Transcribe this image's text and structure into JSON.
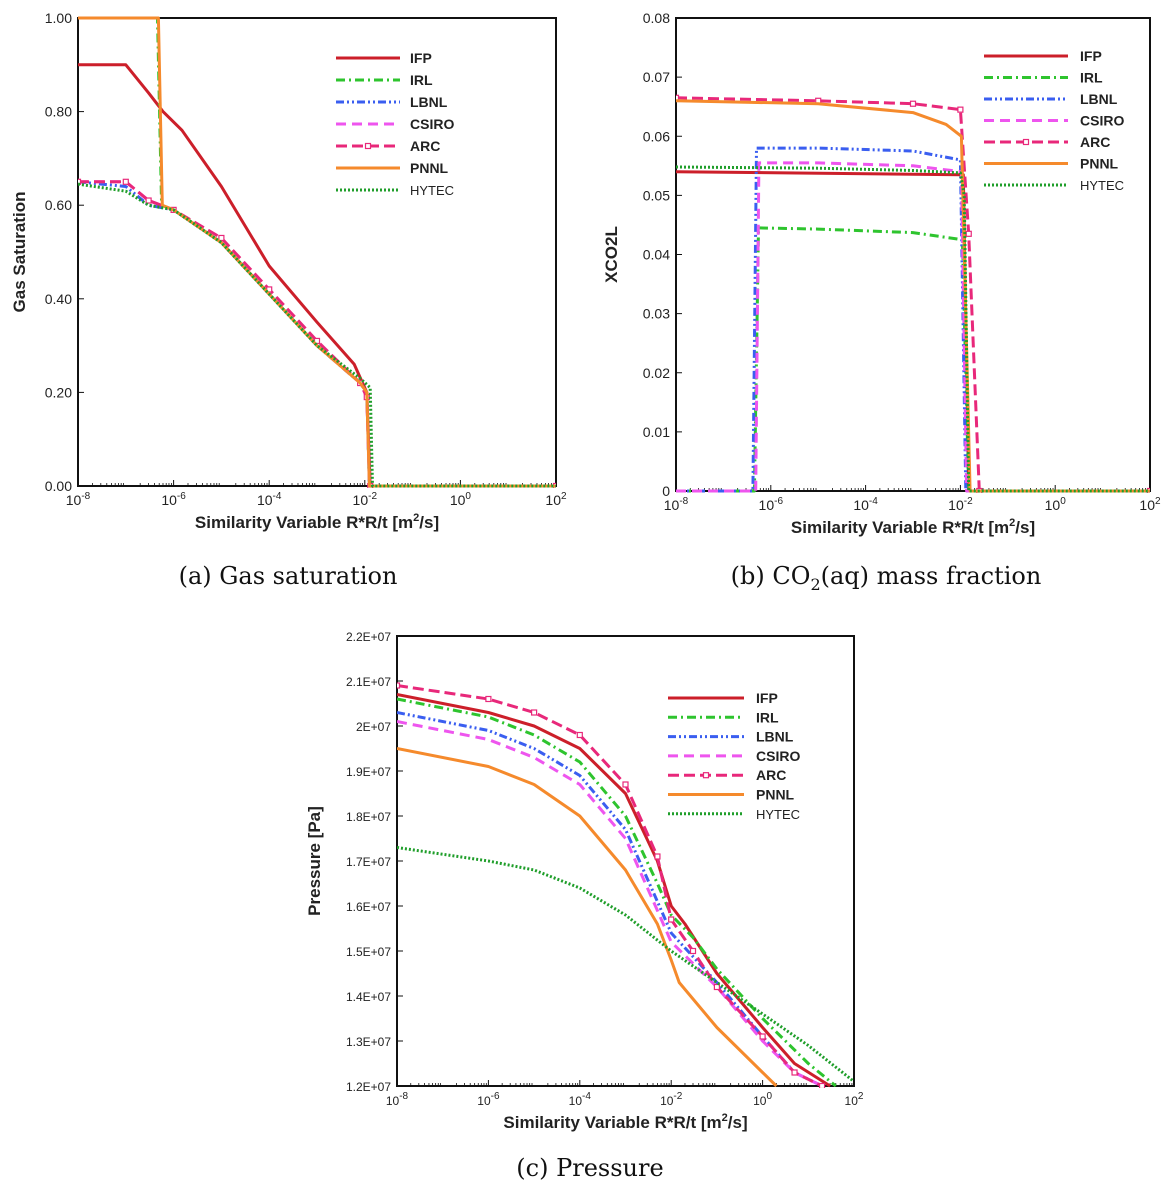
{
  "colors": {
    "IFP": "#cc1f2a",
    "IRL": "#2ec42e",
    "LBNL": "#3a5ef0",
    "CSIRO": "#ee55ee",
    "ARC": "#e8287a",
    "PNNL": "#f58a2c",
    "HYTEC": "#1f9e2a"
  },
  "chart_data": [
    {
      "id": "a",
      "type": "line",
      "caption": "(a) Gas saturation",
      "xlabel": "Similarity Variable R*R/t [m²/s]",
      "ylabel": "Gas Saturation",
      "xscale": "log",
      "xlim": [
        1e-08,
        100
      ],
      "ylim": [
        0,
        1
      ],
      "xticks": [
        "10-8",
        "10-6",
        "10-4",
        "10-2",
        "100",
        "102"
      ],
      "yticks": [
        "0.00",
        "0.20",
        "0.40",
        "0.60",
        "0.80",
        "1.00"
      ],
      "legend": "top-right",
      "series": [
        {
          "name": "IFP",
          "style": "solid",
          "points": [
            [
              1e-08,
              0.9
            ],
            [
              1e-07,
              0.9
            ],
            [
              3e-07,
              0.84
            ],
            [
              6e-07,
              0.8
            ],
            [
              1.5e-06,
              0.76
            ],
            [
              1e-05,
              0.64
            ],
            [
              0.0001,
              0.47
            ],
            [
              0.001,
              0.35
            ],
            [
              0.006,
              0.26
            ],
            [
              0.011,
              0.2
            ],
            [
              0.013,
              0
            ],
            [
              100,
              0
            ]
          ]
        },
        {
          "name": "IRL",
          "style": "dashdot",
          "points": [
            [
              1e-08,
              1
            ],
            [
              4.6e-07,
              1
            ],
            [
              5.6e-07,
              0.6
            ],
            [
              1e-06,
              0.59
            ],
            [
              1e-05,
              0.52
            ],
            [
              0.0001,
              0.41
            ],
            [
              0.001,
              0.3
            ],
            [
              0.008,
              0.22
            ],
            [
              0.011,
              0.2
            ],
            [
              0.0125,
              0
            ],
            [
              100,
              0
            ]
          ]
        },
        {
          "name": "LBNL",
          "style": "dashdotdot",
          "points": [
            [
              1e-08,
              0.65
            ],
            [
              1e-07,
              0.64
            ],
            [
              3e-07,
              0.6
            ],
            [
              1e-06,
              0.59
            ],
            [
              1e-05,
              0.52
            ],
            [
              0.0001,
              0.41
            ],
            [
              0.001,
              0.3
            ],
            [
              0.008,
              0.22
            ],
            [
              0.011,
              0.2
            ],
            [
              0.0125,
              0
            ],
            [
              100,
              0
            ]
          ]
        },
        {
          "name": "CSIRO",
          "style": "dash",
          "points": [
            [
              1e-08,
              0.65
            ],
            [
              1e-07,
              0.65
            ],
            [
              3e-07,
              0.61
            ],
            [
              1e-06,
              0.59
            ],
            [
              1e-05,
              0.52
            ],
            [
              0.0001,
              0.41
            ],
            [
              0.001,
              0.3
            ],
            [
              0.008,
              0.22
            ],
            [
              0.011,
              0.19
            ],
            [
              0.0125,
              0
            ],
            [
              100,
              0
            ]
          ]
        },
        {
          "name": "ARC",
          "style": "dashmarker",
          "points": [
            [
              1e-08,
              0.65
            ],
            [
              1e-07,
              0.65
            ],
            [
              3e-07,
              0.61
            ],
            [
              1e-06,
              0.59
            ],
            [
              1e-05,
              0.53
            ],
            [
              0.0001,
              0.42
            ],
            [
              0.001,
              0.31
            ],
            [
              0.008,
              0.22
            ],
            [
              0.011,
              0.19
            ],
            [
              0.013,
              0
            ],
            [
              100,
              0
            ]
          ]
        },
        {
          "name": "PNNL",
          "style": "solid",
          "points": [
            [
              1e-08,
              1
            ],
            [
              4.8e-07,
              1
            ],
            [
              5.8e-07,
              0.6
            ],
            [
              1e-06,
              0.59
            ],
            [
              1e-05,
              0.52
            ],
            [
              0.0001,
              0.41
            ],
            [
              0.001,
              0.3
            ],
            [
              0.008,
              0.22
            ],
            [
              0.011,
              0.2
            ],
            [
              0.0125,
              0
            ],
            [
              100,
              0
            ]
          ]
        },
        {
          "name": "HYTEC",
          "style": "dot",
          "points": [
            [
              1e-08,
              0.645
            ],
            [
              1e-07,
              0.63
            ],
            [
              3e-07,
              0.6
            ],
            [
              1e-06,
              0.59
            ],
            [
              1e-05,
              0.52
            ],
            [
              0.0001,
              0.41
            ],
            [
              0.001,
              0.3
            ],
            [
              0.008,
              0.23
            ],
            [
              0.013,
              0.21
            ],
            [
              0.0145,
              0
            ],
            [
              100,
              0
            ]
          ]
        }
      ]
    },
    {
      "id": "b",
      "type": "line",
      "caption_pre": "(b) CO",
      "caption_sub": "2",
      "caption_post": "(aq) mass fraction",
      "xlabel": "Similarity Variable R*R/t [m²/s]",
      "ylabel": "XCO2L",
      "xscale": "log",
      "xlim": [
        1e-08,
        100
      ],
      "ylim": [
        0,
        0.08
      ],
      "xticks": [
        "10-8",
        "10-6",
        "10-4",
        "10-2",
        "100",
        "102"
      ],
      "yticks": [
        "0",
        "0.01",
        "0.02",
        "0.03",
        "0.04",
        "0.05",
        "0.06",
        "0.07",
        "0.08"
      ],
      "legend": "top-right",
      "series": [
        {
          "name": "IFP",
          "style": "solid",
          "points": [
            [
              1e-08,
              0.054
            ],
            [
              0.01,
              0.0535
            ],
            [
              0.0115,
              0.0535
            ],
            [
              0.015,
              0
            ],
            [
              100,
              0
            ]
          ]
        },
        {
          "name": "IRL",
          "style": "dashdot",
          "points": [
            [
              1e-08,
              0
            ],
            [
              4.5e-07,
              0
            ],
            [
              5.5e-07,
              0.0445
            ],
            [
              1e-05,
              0.0443
            ],
            [
              0.001,
              0.0437
            ],
            [
              0.011,
              0.0425
            ],
            [
              0.015,
              0
            ],
            [
              100,
              0
            ]
          ]
        },
        {
          "name": "LBNL",
          "style": "dashdotdot",
          "points": [
            [
              1e-08,
              0
            ],
            [
              4.2e-07,
              0
            ],
            [
              5e-07,
              0.058
            ],
            [
              1e-05,
              0.058
            ],
            [
              0.001,
              0.0575
            ],
            [
              0.01,
              0.056
            ],
            [
              0.013,
              0
            ],
            [
              100,
              0
            ]
          ]
        },
        {
          "name": "CSIRO",
          "style": "dash",
          "points": [
            [
              1e-08,
              0
            ],
            [
              4.8e-07,
              0
            ],
            [
              5.6e-07,
              0.0555
            ],
            [
              1e-05,
              0.0555
            ],
            [
              0.001,
              0.055
            ],
            [
              0.0105,
              0.054
            ],
            [
              0.0135,
              0
            ],
            [
              100,
              0
            ]
          ]
        },
        {
          "name": "ARC",
          "style": "dashmarker",
          "points": [
            [
              1e-08,
              0.0665
            ],
            [
              1e-05,
              0.066
            ],
            [
              0.001,
              0.0655
            ],
            [
              0.01,
              0.0645
            ],
            [
              0.015,
              0.0435
            ],
            [
              0.025,
              0
            ],
            [
              100,
              0
            ]
          ]
        },
        {
          "name": "PNNL",
          "style": "solid",
          "points": [
            [
              1e-08,
              0.066
            ],
            [
              1e-05,
              0.0655
            ],
            [
              0.001,
              0.064
            ],
            [
              0.005,
              0.062
            ],
            [
              0.0105,
              0.06
            ],
            [
              0.016,
              0
            ],
            [
              100,
              0
            ]
          ]
        },
        {
          "name": "HYTEC",
          "style": "dot",
          "points": [
            [
              1e-08,
              0.0548
            ],
            [
              1e-05,
              0.0546
            ],
            [
              0.001,
              0.0542
            ],
            [
              0.01,
              0.0538
            ],
            [
              0.012,
              0.05
            ],
            [
              0.015,
              0
            ],
            [
              100,
              0
            ]
          ]
        }
      ]
    },
    {
      "id": "c",
      "type": "line",
      "caption": "(c) Pressure",
      "xlabel": "Similarity Variable R*R/t [m²/s]",
      "ylabel": "Pressure [Pa]",
      "xscale": "log",
      "xlim": [
        1e-08,
        100
      ],
      "ylim": [
        12000000,
        22000000
      ],
      "xticks": [
        "10-8",
        "10-6",
        "10-4",
        "10-2",
        "100",
        "102"
      ],
      "yticks": [
        "1.2E+07",
        "1.3E+07",
        "1.4E+07",
        "1.5E+07",
        "1.6E+07",
        "1.7E+07",
        "1.8E+07",
        "1.9E+07",
        "2E+07",
        "2.1E+07",
        "2.2E+07"
      ],
      "legend": "top-right",
      "series": [
        {
          "name": "IFP",
          "style": "solid",
          "points": [
            [
              1e-08,
              20700000
            ],
            [
              1e-06,
              20300000
            ],
            [
              1e-05,
              20000000
            ],
            [
              0.0001,
              19500000
            ],
            [
              0.001,
              18500000
            ],
            [
              0.005,
              17000000
            ],
            [
              0.01,
              16000000
            ],
            [
              0.02,
              15600000
            ],
            [
              0.1,
              14500000
            ],
            [
              1,
              13300000
            ],
            [
              5,
              12500000
            ],
            [
              30,
              12000000
            ]
          ]
        },
        {
          "name": "IRL",
          "style": "dashdot",
          "points": [
            [
              1e-08,
              20600000
            ],
            [
              1e-06,
              20200000
            ],
            [
              1e-05,
              19800000
            ],
            [
              0.0001,
              19200000
            ],
            [
              0.001,
              18000000
            ],
            [
              0.005,
              16500000
            ],
            [
              0.01,
              15800000
            ],
            [
              0.03,
              15300000
            ],
            [
              0.1,
              14600000
            ],
            [
              1,
              13500000
            ],
            [
              10,
              12500000
            ],
            [
              40,
              12000000
            ]
          ]
        },
        {
          "name": "LBNL",
          "style": "dashdotdot",
          "points": [
            [
              1e-08,
              20300000
            ],
            [
              1e-06,
              19900000
            ],
            [
              1e-05,
              19500000
            ],
            [
              0.0001,
              18900000
            ],
            [
              0.001,
              17700000
            ],
            [
              0.005,
              16100000
            ],
            [
              0.01,
              15400000
            ],
            [
              0.1,
              14300000
            ],
            [
              1,
              13100000
            ],
            [
              5,
              12300000
            ],
            [
              20,
              12000000
            ]
          ]
        },
        {
          "name": "CSIRO",
          "style": "dash",
          "points": [
            [
              1e-08,
              20100000
            ],
            [
              1e-06,
              19700000
            ],
            [
              1e-05,
              19300000
            ],
            [
              0.0001,
              18700000
            ],
            [
              0.001,
              17500000
            ],
            [
              0.005,
              15900000
            ],
            [
              0.01,
              15200000
            ],
            [
              0.1,
              14200000
            ],
            [
              1,
              13000000
            ],
            [
              5,
              12300000
            ],
            [
              20,
              12000000
            ]
          ]
        },
        {
          "name": "ARC",
          "style": "dashmarker",
          "points": [
            [
              1e-08,
              20900000
            ],
            [
              1e-06,
              20600000
            ],
            [
              1e-05,
              20300000
            ],
            [
              0.0001,
              19800000
            ],
            [
              0.001,
              18700000
            ],
            [
              0.005,
              17100000
            ],
            [
              0.01,
              15700000
            ],
            [
              0.03,
              15000000
            ],
            [
              0.1,
              14200000
            ],
            [
              1,
              13100000
            ],
            [
              5,
              12300000
            ],
            [
              20,
              12000000
            ]
          ]
        },
        {
          "name": "PNNL",
          "style": "solid",
          "points": [
            [
              1e-08,
              19500000
            ],
            [
              1e-06,
              19100000
            ],
            [
              1e-05,
              18700000
            ],
            [
              0.0001,
              18000000
            ],
            [
              0.001,
              16800000
            ],
            [
              0.005,
              15600000
            ],
            [
              0.01,
              14800000
            ],
            [
              0.015,
              14300000
            ],
            [
              0.1,
              13300000
            ],
            [
              1,
              12300000
            ],
            [
              2,
              12000000
            ]
          ]
        },
        {
          "name": "HYTEC",
          "style": "dot",
          "points": [
            [
              1e-08,
              17300000
            ],
            [
              1e-06,
              17000000
            ],
            [
              1e-05,
              16800000
            ],
            [
              0.0001,
              16400000
            ],
            [
              0.001,
              15800000
            ],
            [
              0.01,
              15000000
            ],
            [
              0.1,
              14300000
            ],
            [
              1,
              13600000
            ],
            [
              10,
              12900000
            ],
            [
              100,
              12100000
            ]
          ]
        }
      ]
    }
  ]
}
